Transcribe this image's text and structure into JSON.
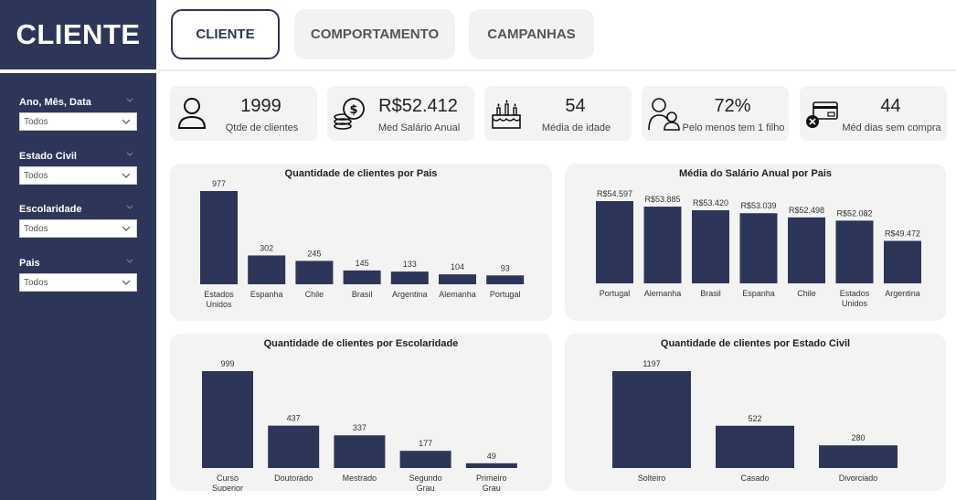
{
  "sidebar": {
    "title": "CLIENTE",
    "filters": [
      {
        "label": "Ano, Mês, Data",
        "value": "Todos"
      },
      {
        "label": "Estado Civil",
        "value": "Todos"
      },
      {
        "label": "Escolaridade",
        "value": "Todos"
      },
      {
        "label": "Pais",
        "value": "Todos"
      }
    ]
  },
  "tabs": [
    {
      "label": "CLIENTE",
      "active": true
    },
    {
      "label": "COMPORTAMENTO",
      "active": false
    },
    {
      "label": "CAMPANHAS",
      "active": false
    }
  ],
  "kpis": [
    {
      "value": "1999",
      "label": "Qtde de clientes",
      "icon": "person-icon"
    },
    {
      "value": "R$52.412",
      "label": "Med Salário Anual",
      "icon": "coins-icon"
    },
    {
      "value": "54",
      "label": "Média de idade",
      "icon": "birthday-cake-icon"
    },
    {
      "value": "72%",
      "label": "Pelo menos tem 1 filho",
      "icon": "parent-child-icon"
    },
    {
      "value": "44",
      "label": "Méd dias sem compra",
      "icon": "card-declined-icon"
    }
  ],
  "colors": {
    "bar": "#2d3658",
    "sidebar": "#2d3658",
    "panel": "#f3f3f3"
  },
  "chart_data": [
    {
      "type": "bar",
      "title": "Quantidade de clientes por Pais",
      "categories": [
        "Estados Unidos",
        "Espanha",
        "Chile",
        "Brasil",
        "Argentina",
        "Alemanha",
        "Portugal"
      ],
      "values": [
        977,
        302,
        245,
        145,
        133,
        104,
        93
      ],
      "labels": [
        "977",
        "302",
        "245",
        "145",
        "133",
        "104",
        "93"
      ]
    },
    {
      "type": "bar",
      "title": "Média do Salário Anual por Pais",
      "categories": [
        "Portugal",
        "Alemanha",
        "Brasil",
        "Espanha",
        "Chile",
        "Estados Unidos",
        "Argentina"
      ],
      "values": [
        54597,
        53885,
        53420,
        53039,
        52498,
        52082,
        49472
      ],
      "labels": [
        "R$54.597",
        "R$53.885",
        "R$53.420",
        "R$53.039",
        "R$52.498",
        "R$52.082",
        "R$49.472"
      ]
    },
    {
      "type": "bar",
      "title": "Quantidade de clientes por Escolaridade",
      "categories": [
        "Curso Superior",
        "Doutorado",
        "Mestrado",
        "Segundo Grau",
        "Primeiro Grau"
      ],
      "values": [
        999,
        437,
        337,
        177,
        49
      ],
      "labels": [
        "999",
        "437",
        "337",
        "177",
        "49"
      ]
    },
    {
      "type": "bar",
      "title": "Quantidade de clientes por Estado Civil",
      "categories": [
        "Solteiro",
        "Casado",
        "Divorciado"
      ],
      "values": [
        1197,
        522,
        280
      ],
      "labels": [
        "1197",
        "522",
        "280"
      ]
    }
  ]
}
